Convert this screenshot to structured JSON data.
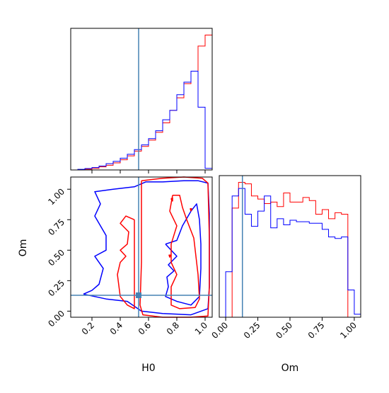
{
  "colors": {
    "red": "#ff0000",
    "blue": "#0000ff",
    "truth": "#4682b4",
    "axis": "#000000"
  },
  "chart_data": [
    {
      "type": "histogram",
      "panel": "H0 marginal",
      "xlim": [
        0.05,
        1.05
      ],
      "y_ticks_visible": false,
      "x_tick_values": [
        0.2,
        0.4,
        0.6,
        0.8,
        1.0
      ],
      "truth_x": 0.53,
      "bin_edges": [
        0.05,
        0.1,
        0.15,
        0.2,
        0.25,
        0.3,
        0.35,
        0.4,
        0.45,
        0.5,
        0.55,
        0.6,
        0.65,
        0.7,
        0.75,
        0.8,
        0.85,
        0.9,
        0.95,
        1.0,
        1.05
      ],
      "series": [
        {
          "name_visible": false,
          "color": "red",
          "counts": [
            0.0,
            0.2,
            0.5,
            1.0,
            2.0,
            3.0,
            4.5,
            6.5,
            9.0,
            12.0,
            15.0,
            19.0,
            24.0,
            30.0,
            38.0,
            46.0,
            55.0,
            63.0,
            79.0,
            86.0
          ]
        },
        {
          "name_visible": false,
          "color": "blue",
          "counts": [
            0.0,
            0.4,
            0.9,
            1.5,
            2.5,
            4.0,
            5.5,
            7.5,
            10.0,
            13.0,
            16.0,
            20.0,
            25.0,
            32.0,
            38.0,
            48.0,
            56.0,
            63.0,
            40.0,
            1.0
          ]
        }
      ]
    },
    {
      "type": "contour",
      "panel": "H0 vs Om joint",
      "xlim": [
        0.05,
        1.05
      ],
      "ylim": [
        -0.05,
        1.1
      ],
      "x_tick_labels": [
        "0.2",
        "0.4",
        "0.6",
        "0.8",
        "1.0"
      ],
      "y_tick_labels": [
        "0.00",
        "0.25",
        "0.50",
        "0.75",
        "1.00"
      ],
      "y_tick_values": [
        0.0,
        0.25,
        0.5,
        0.75,
        1.0
      ],
      "x_tick_values": [
        0.2,
        0.4,
        0.6,
        0.8,
        1.0
      ],
      "xlabel": "H0",
      "ylabel": "Om",
      "truth": [
        0.53,
        0.13
      ],
      "contours": [
        {
          "color": "blue",
          "level": "outer",
          "points": [
            [
              0.14,
              0.14
            ],
            [
              0.2,
              0.17
            ],
            [
              0.25,
              0.22
            ],
            [
              0.28,
              0.35
            ],
            [
              0.22,
              0.45
            ],
            [
              0.3,
              0.5
            ],
            [
              0.3,
              0.62
            ],
            [
              0.22,
              0.78
            ],
            [
              0.26,
              0.88
            ],
            [
              0.22,
              0.98
            ],
            [
              0.35,
              1.0
            ],
            [
              0.5,
              1.02
            ],
            [
              0.58,
              1.06
            ],
            [
              0.7,
              1.06
            ],
            [
              0.85,
              1.07
            ],
            [
              0.95,
              1.07
            ],
            [
              1.02,
              1.05
            ],
            [
              1.03,
              0.8
            ],
            [
              1.03,
              0.5
            ],
            [
              1.03,
              0.2
            ],
            [
              1.02,
              0.02
            ],
            [
              0.9,
              -0.03
            ],
            [
              0.7,
              -0.02
            ],
            [
              0.55,
              0.0
            ],
            [
              0.45,
              0.08
            ],
            [
              0.3,
              0.1
            ],
            [
              0.14,
              0.14
            ]
          ]
        },
        {
          "color": "blue",
          "level": "inner",
          "points": [
            [
              0.72,
              0.55
            ],
            [
              0.8,
              0.58
            ],
            [
              0.84,
              0.7
            ],
            [
              0.9,
              0.82
            ],
            [
              0.94,
              0.88
            ],
            [
              0.96,
              0.75
            ],
            [
              0.97,
              0.55
            ],
            [
              0.97,
              0.35
            ],
            [
              0.96,
              0.12
            ],
            [
              0.9,
              0.05
            ],
            [
              0.8,
              0.08
            ],
            [
              0.72,
              0.12
            ],
            [
              0.74,
              0.2
            ],
            [
              0.73,
              0.28
            ],
            [
              0.78,
              0.33
            ],
            [
              0.74,
              0.38
            ],
            [
              0.8,
              0.45
            ],
            [
              0.72,
              0.55
            ]
          ]
        },
        {
          "color": "red",
          "level": "outer",
          "points": [
            [
              0.55,
              1.07
            ],
            [
              0.7,
              1.09
            ],
            [
              0.85,
              1.1
            ],
            [
              0.98,
              1.09
            ],
            [
              1.02,
              1.05
            ],
            [
              1.03,
              0.6
            ],
            [
              1.03,
              0.2
            ],
            [
              1.02,
              -0.04
            ],
            [
              0.9,
              -0.05
            ],
            [
              0.7,
              -0.05
            ],
            [
              0.56,
              -0.03
            ],
            [
              0.54,
              0.05
            ],
            [
              0.55,
              0.4
            ],
            [
              0.55,
              0.8
            ],
            [
              0.55,
              1.07
            ]
          ]
        },
        {
          "color": "red",
          "level": "inner",
          "points": [
            [
              0.77,
              0.95
            ],
            [
              0.82,
              0.95
            ],
            [
              0.84,
              0.85
            ],
            [
              0.87,
              0.75
            ],
            [
              0.92,
              0.6
            ],
            [
              0.95,
              0.3
            ],
            [
              0.96,
              0.1
            ],
            [
              0.93,
              0.03
            ],
            [
              0.82,
              0.02
            ],
            [
              0.76,
              0.05
            ],
            [
              0.76,
              0.2
            ],
            [
              0.8,
              0.3
            ],
            [
              0.76,
              0.4
            ],
            [
              0.76,
              0.55
            ],
            [
              0.8,
              0.7
            ],
            [
              0.75,
              0.82
            ],
            [
              0.77,
              0.95
            ]
          ]
        },
        {
          "color": "red",
          "level": "outer",
          "points": [
            [
              0.5,
              0.75
            ],
            [
              0.44,
              0.78
            ],
            [
              0.4,
              0.72
            ],
            [
              0.46,
              0.65
            ],
            [
              0.45,
              0.55
            ],
            [
              0.4,
              0.5
            ],
            [
              0.44,
              0.45
            ],
            [
              0.4,
              0.4
            ],
            [
              0.38,
              0.3
            ],
            [
              0.4,
              0.12
            ],
            [
              0.45,
              0.05
            ],
            [
              0.5,
              0.02
            ],
            [
              0.5,
              0.3
            ],
            [
              0.5,
              0.55
            ],
            [
              0.5,
              0.75
            ]
          ]
        },
        {
          "color": "red",
          "level": "inner",
          "points": [
            [
              0.77,
              0.9
            ],
            [
              0.76,
              0.92
            ],
            [
              0.77,
              0.93
            ],
            [
              0.77,
              0.9
            ]
          ]
        },
        {
          "color": "red",
          "level": "inner",
          "points": [
            [
              0.9,
              0.82
            ],
            [
              0.895,
              0.84
            ],
            [
              0.905,
              0.84
            ],
            [
              0.9,
              0.82
            ]
          ]
        },
        {
          "color": "red",
          "level": "inner",
          "points": [
            [
              0.75,
              0.44
            ],
            [
              0.745,
              0.46
            ],
            [
              0.755,
              0.46
            ],
            [
              0.75,
              0.44
            ]
          ]
        }
      ]
    },
    {
      "type": "histogram",
      "panel": "Om marginal",
      "xlim": [
        -0.05,
        1.05
      ],
      "y_ticks_visible": false,
      "x_tick_labels": [
        "0.00",
        "0.25",
        "0.50",
        "0.75",
        "1.00"
      ],
      "x_tick_values": [
        0.0,
        0.25,
        0.5,
        0.75,
        1.0
      ],
      "xlabel": "Om",
      "truth_x": 0.13,
      "bin_edges": [
        -0.05,
        0.0,
        0.05,
        0.1,
        0.15,
        0.2,
        0.25,
        0.3,
        0.35,
        0.4,
        0.45,
        0.5,
        0.55,
        0.6,
        0.65,
        0.7,
        0.75,
        0.8,
        0.85,
        0.9,
        0.95,
        1.0,
        1.05
      ],
      "series": [
        {
          "name_visible": false,
          "color": "red",
          "counts": [
            0,
            0,
            72,
            89,
            88,
            80,
            78,
            75,
            76,
            73,
            82,
            76,
            76,
            79,
            77,
            68,
            71,
            65,
            69,
            68,
            0,
            0
          ]
        },
        {
          "name_visible": false,
          "color": "blue",
          "counts": [
            0,
            30,
            80,
            85,
            68,
            60,
            70,
            80,
            59,
            65,
            61,
            64,
            63,
            63,
            62,
            62,
            58,
            53,
            52,
            53,
            18,
            2
          ]
        }
      ]
    }
  ]
}
